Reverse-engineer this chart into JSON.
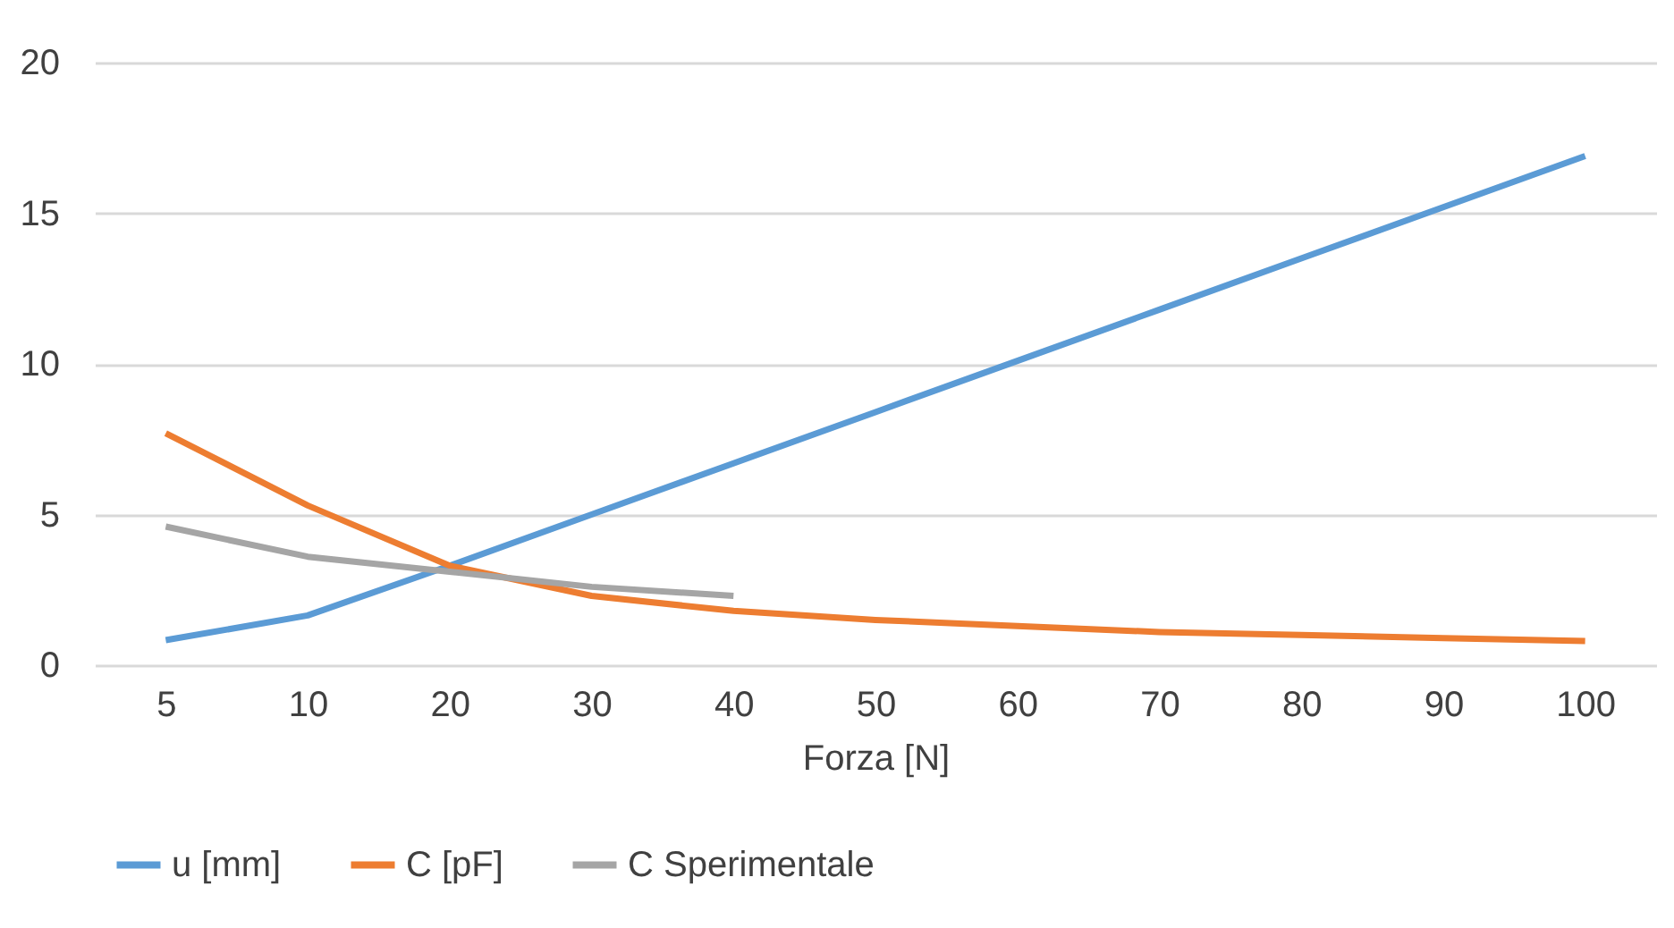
{
  "chart_data": {
    "type": "line",
    "xlabel": "Forza [N]",
    "categories": [
      "5",
      "10",
      "20",
      "30",
      "40",
      "50",
      "60",
      "70",
      "80",
      "90",
      "100"
    ],
    "series": [
      {
        "name": "u [mm]",
        "color": "#5b9bd5",
        "values": [
          0.83,
          1.65,
          3.3,
          5.0,
          6.7,
          8.4,
          10.1,
          11.8,
          13.5,
          15.2,
          16.9
        ]
      },
      {
        "name": "C [pF]",
        "color": "#ed7d31",
        "values": [
          7.7,
          5.3,
          3.3,
          2.3,
          1.8,
          1.5,
          1.3,
          1.1,
          1.0,
          0.9,
          0.8
        ]
      },
      {
        "name": "C Sperimentale",
        "color": "#a5a5a5",
        "values": [
          4.6,
          3.6,
          3.1,
          2.6,
          2.3,
          null,
          null,
          null,
          null,
          null,
          null
        ]
      }
    ],
    "ylim": [
      0,
      20
    ],
    "yticks": [
      0,
      5,
      10,
      15,
      20
    ],
    "grid": "y",
    "legend": "bottom",
    "marker": "none",
    "line_style": "solid"
  }
}
